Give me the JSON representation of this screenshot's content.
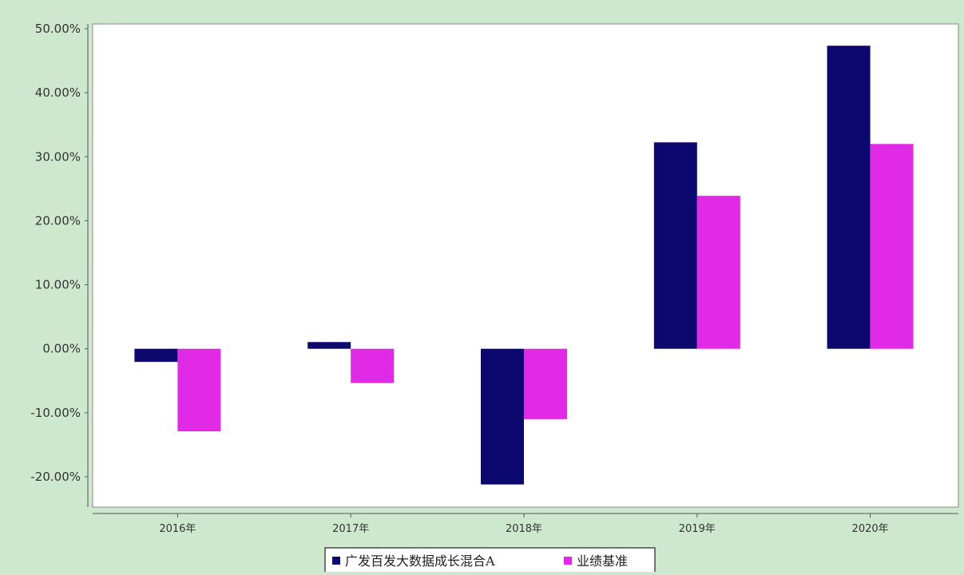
{
  "chart_data": {
    "type": "bar",
    "categories": [
      "2016年",
      "2017年",
      "2018年",
      "2019年",
      "2020年"
    ],
    "series": [
      {
        "name": "广发百发大数据成长混合A",
        "color": "#0d0770",
        "values": [
          -2.05,
          1.05,
          -21.2,
          32.25,
          47.35
        ]
      },
      {
        "name": "业绩基准",
        "color": "#e12ae6",
        "values": [
          -12.9,
          -5.35,
          -11.0,
          23.9,
          32.0
        ]
      }
    ],
    "ylim": [
      -25,
      50
    ],
    "yticks": [
      {
        "value": 50,
        "label": "50.00%"
      },
      {
        "value": 40,
        "label": "40.00%"
      },
      {
        "value": 30,
        "label": "30.00%"
      },
      {
        "value": 20,
        "label": "20.00%"
      },
      {
        "value": 10,
        "label": "10.00%"
      },
      {
        "value": 0,
        "label": "0.00%"
      },
      {
        "value": -10,
        "label": "-10.00%"
      },
      {
        "value": -20,
        "label": "-20.00%"
      }
    ],
    "grid": false,
    "legend_position": "bottom-center",
    "title": "",
    "xlabel": "",
    "ylabel": "",
    "background_color": "#cde8cd",
    "plot_background": "#ffffff"
  }
}
